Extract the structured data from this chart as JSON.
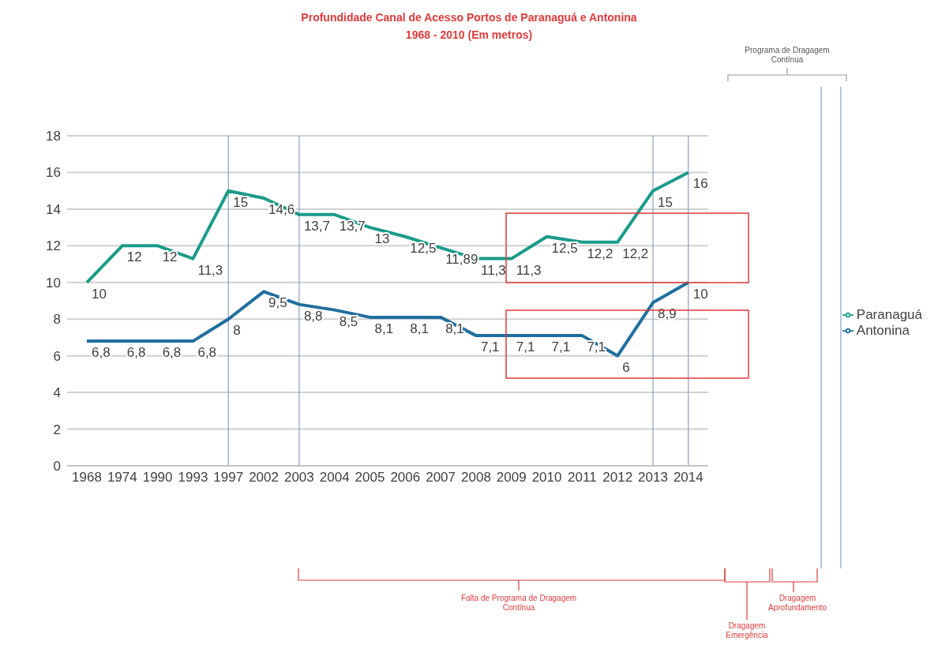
{
  "chart_data": {
    "type": "line",
    "title": "Profundidade Canal de Acesso Portos de Paranaguá e Antonina",
    "subtitle": "1968 - 2010 (Em metros)",
    "categories": [
      "1968",
      "1974",
      "1990",
      "1993",
      "1997",
      "2002",
      "2003",
      "2004",
      "2005",
      "2006",
      "2007",
      "2008",
      "2009",
      "2010",
      "2011",
      "2012",
      "2013",
      "2014"
    ],
    "series": [
      {
        "name": "Paranaguá",
        "color": "#1a9b8a",
        "values": [
          10,
          12,
          12,
          11.3,
          15,
          14.6,
          13.7,
          13.7,
          13,
          12.5,
          11.89,
          11.3,
          11.3,
          12.5,
          12.2,
          12.2,
          15,
          16
        ],
        "value_labels": [
          "10",
          "12",
          "12",
          "11,3",
          "15",
          "14,6",
          "13,7",
          "13,7",
          "13",
          "12,5",
          "11,89",
          "11,3",
          "11,3",
          "12,5",
          "12,2",
          "12,2",
          "15",
          "16"
        ]
      },
      {
        "name": "Antonina",
        "color": "#1f6f9f",
        "values": [
          6.8,
          6.8,
          6.8,
          6.8,
          8,
          9.5,
          8.8,
          8.5,
          8.1,
          8.1,
          8.1,
          7.1,
          7.1,
          7.1,
          7.1,
          6,
          8.9,
          10
        ],
        "value_labels": [
          "6,8",
          "6,8",
          "6,8",
          "6,8",
          "8",
          "9,5",
          "8,8",
          "8,5",
          "8,1",
          "8,1",
          "8,1",
          "7,1",
          "7,1",
          "7,1",
          "7,1",
          "6",
          "8,9",
          "10"
        ]
      }
    ],
    "ylim": [
      0,
      18
    ],
    "yticks": [
      0,
      2,
      4,
      6,
      8,
      10,
      12,
      14,
      16,
      18
    ],
    "grid": "y",
    "legend": "right",
    "marker": "none",
    "line_style": "solid",
    "ref_lines": [
      {
        "axis": "x",
        "value": "1997",
        "color": "#8aa0c0"
      },
      {
        "axis": "x",
        "value": "2003",
        "color": "#8aa0c0"
      },
      {
        "axis": "x",
        "value": "2013",
        "color": "#8aa0c0"
      },
      {
        "axis": "x",
        "value": "2014",
        "color": "#8aa0c0"
      }
    ],
    "annotations": [
      "Programa de Dragagem Contínua",
      "Falta de Programa de Dragagem Contínua",
      "Dragagem Emergência",
      "Dragagem Aprofundamento"
    ]
  }
}
